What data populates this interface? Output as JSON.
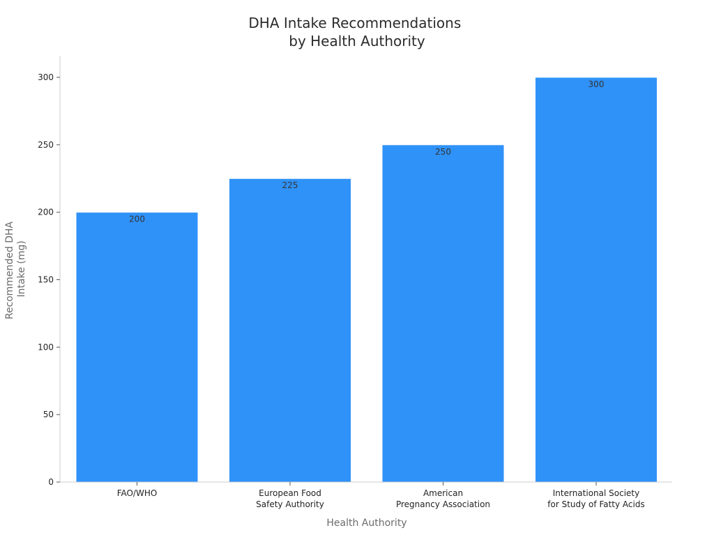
{
  "chart_data": {
    "type": "bar",
    "title_lines": [
      "DHA Intake Recommendations",
      "by Health Authority"
    ],
    "xlabel": "Health Authority",
    "ylabel_lines": [
      "Recommended DHA",
      "Intake (mg)"
    ],
    "categories": [
      [
        "FAO/WHO"
      ],
      [
        "European Food",
        "Safety Authority"
      ],
      [
        "American",
        "Pregnancy Association"
      ],
      [
        "International Society",
        "for Study of Fatty Acids"
      ]
    ],
    "values": [
      200,
      225,
      250,
      300
    ],
    "data_labels": [
      "200",
      "225",
      "250",
      "300"
    ],
    "ylim": [
      0,
      316
    ],
    "yticks": [
      0,
      50,
      100,
      150,
      200,
      250,
      300
    ],
    "ytick_labels": [
      "0",
      "50",
      "100",
      "150",
      "200",
      "250",
      "300"
    ],
    "grid": false,
    "bar_color": "#2f92f8"
  }
}
